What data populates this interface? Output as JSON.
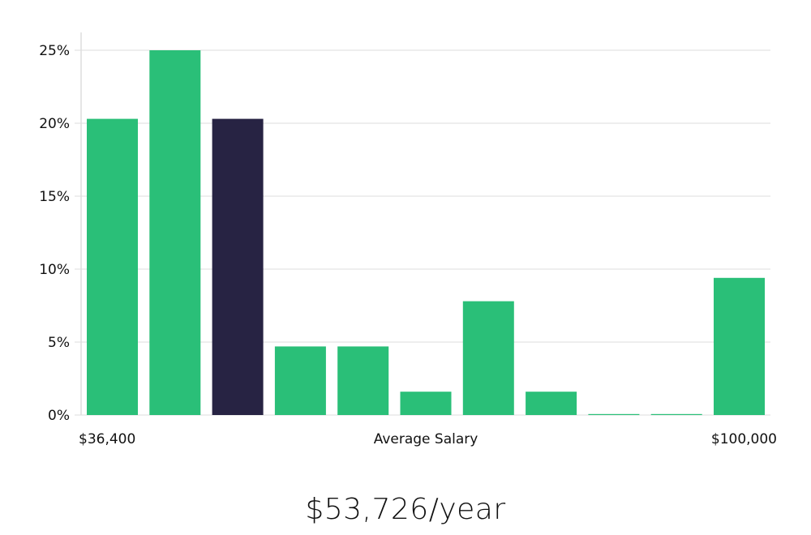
{
  "chart_data": {
    "type": "bar",
    "title": "",
    "xlabel": "Average Salary",
    "ylabel": "",
    "x_start_label": "$36,400",
    "x_end_label": "$100,000",
    "categories": [
      "1",
      "2",
      "3",
      "4",
      "5",
      "6",
      "7",
      "8",
      "9",
      "10",
      "11"
    ],
    "values": [
      20.3,
      25.0,
      20.3,
      4.7,
      4.7,
      1.6,
      7.8,
      1.6,
      0,
      0,
      9.4
    ],
    "highlight_index": 2,
    "ylim": [
      0,
      26
    ],
    "yticks": [
      0,
      5,
      10,
      15,
      20,
      25
    ],
    "ytick_labels": [
      "0%",
      "5%",
      "10%",
      "15%",
      "20%",
      "25%"
    ],
    "grid": true,
    "colors": {
      "bar": "#2abf78",
      "highlight": "#272343",
      "grid": "#dddddd",
      "axis": "#cccccc"
    }
  },
  "summary": {
    "average_salary": "$53,726/year"
  }
}
